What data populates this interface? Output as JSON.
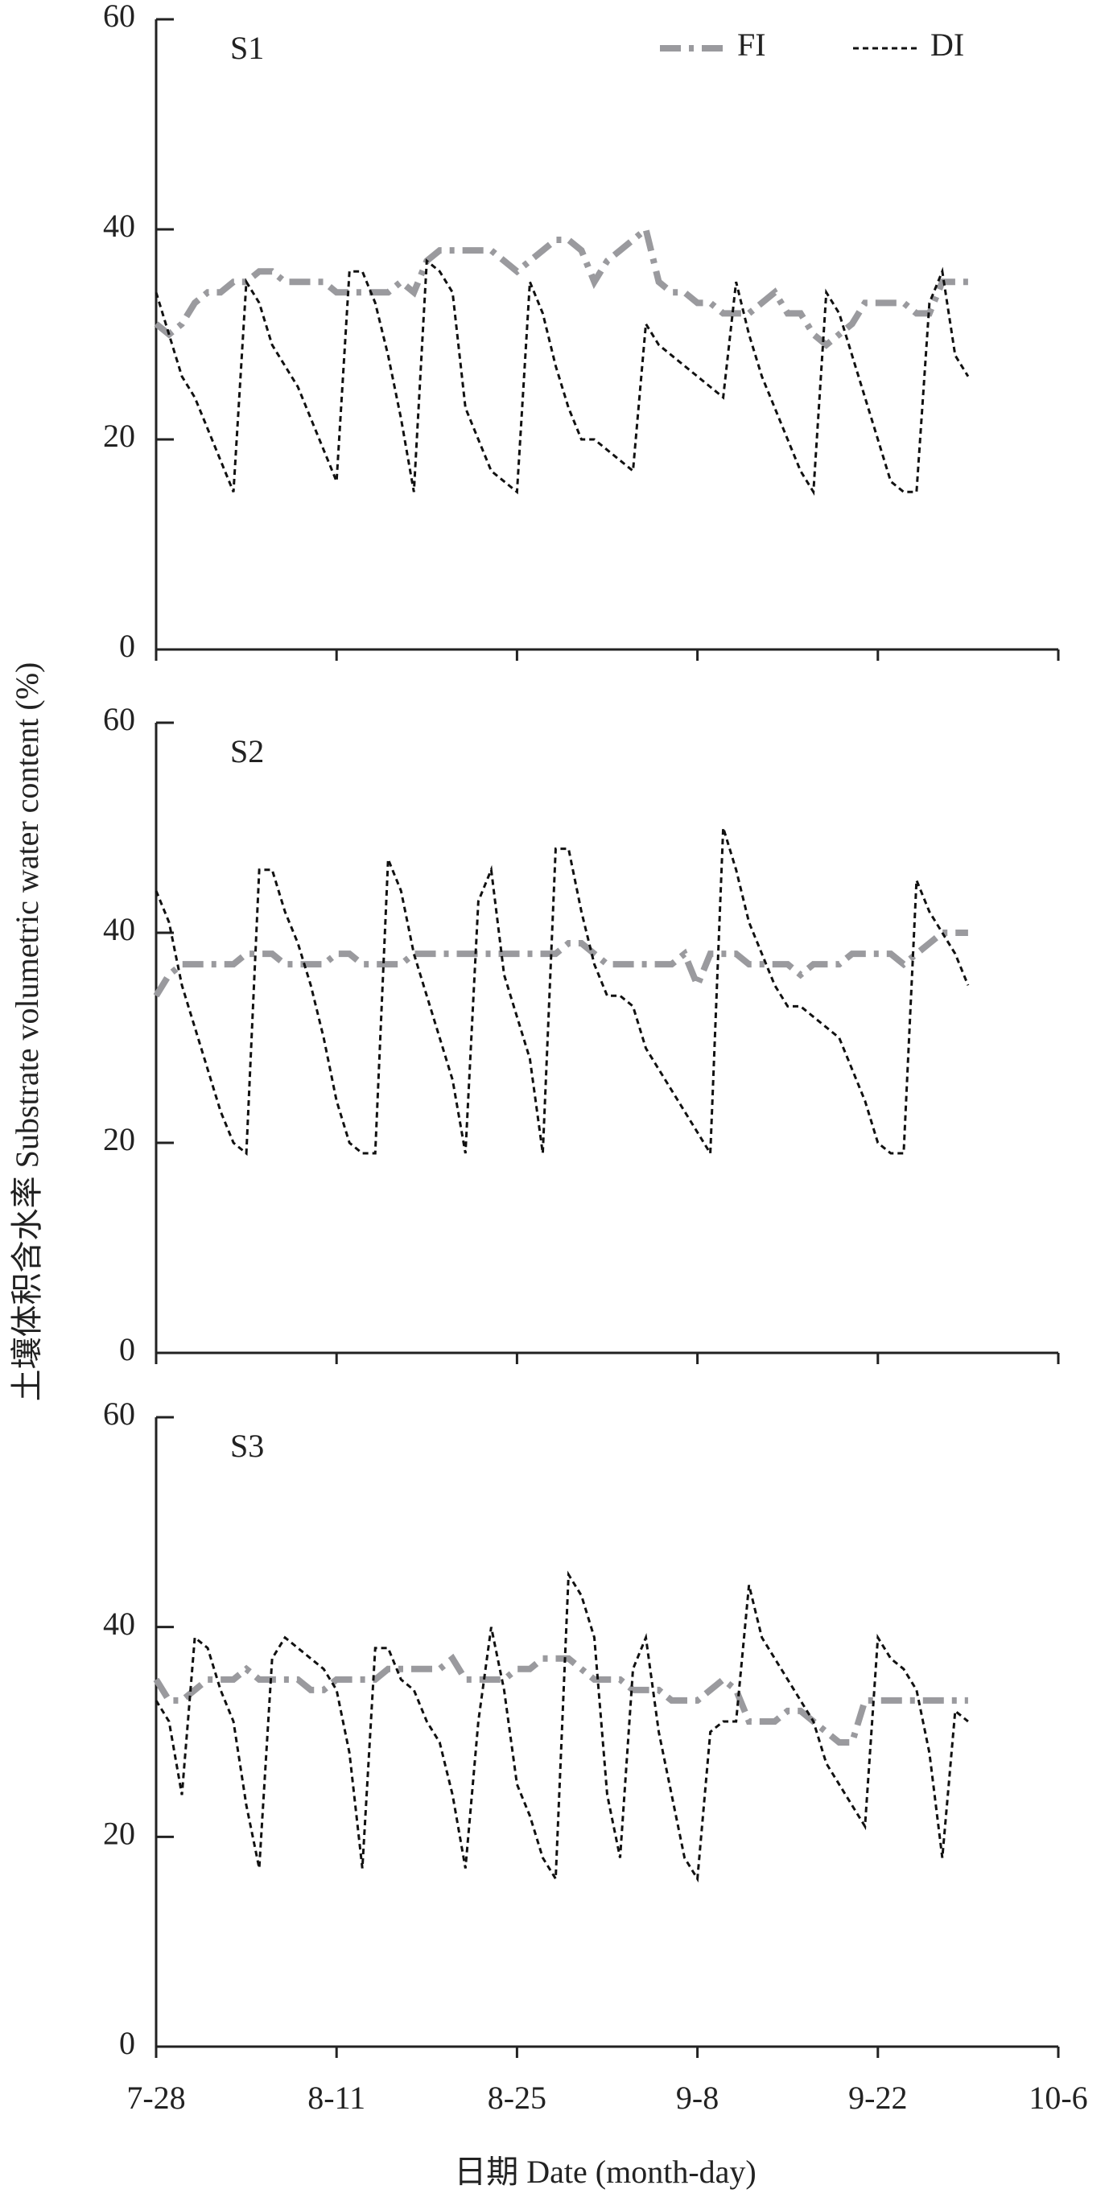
{
  "chart_data": [
    {
      "type": "line",
      "title": "S1",
      "legend": "upper right",
      "show_xtick_labels": false,
      "x": [
        "7-28",
        "7-29",
        "7-30",
        "7-31",
        "8-1",
        "8-2",
        "8-3",
        "8-4",
        "8-5",
        "8-6",
        "8-7",
        "8-8",
        "8-9",
        "8-10",
        "8-11",
        "8-12",
        "8-13",
        "8-14",
        "8-15",
        "8-16",
        "8-17",
        "8-18",
        "8-19",
        "8-20",
        "8-21",
        "8-22",
        "8-23",
        "8-24",
        "8-25",
        "8-26",
        "8-27",
        "8-28",
        "8-29",
        "8-30",
        "8-31",
        "9-1",
        "9-2",
        "9-3",
        "9-4",
        "9-5",
        "9-6",
        "9-7",
        "9-8",
        "9-9",
        "9-10",
        "9-11",
        "9-12",
        "9-13",
        "9-14",
        "9-15",
        "9-16",
        "9-17",
        "9-18",
        "9-19",
        "9-20",
        "9-21",
        "9-22",
        "9-23",
        "9-24",
        "9-25",
        "9-26",
        "9-27",
        "9-28",
        "9-29"
      ],
      "series": [
        {
          "name": "FI",
          "color": "#9a9a9e",
          "style": "dashdot",
          "values": [
            31,
            30,
            31,
            33,
            34,
            34,
            35,
            35,
            36,
            36,
            35,
            35,
            35,
            35,
            34,
            34,
            34,
            34,
            34,
            35,
            34,
            37,
            38,
            38,
            38,
            38,
            38,
            37,
            36,
            37,
            38,
            39,
            39,
            38,
            35,
            37,
            38,
            39,
            40,
            35,
            34,
            34,
            33,
            33,
            32,
            32,
            32,
            33,
            34,
            32,
            32,
            30,
            29,
            30,
            31,
            33,
            33,
            33,
            33,
            32,
            32,
            35,
            35,
            35
          ]
        },
        {
          "name": "DI",
          "color": "#111111",
          "style": "dashed",
          "values": [
            34,
            30,
            26,
            24,
            21,
            18,
            15,
            35,
            33,
            29,
            27,
            25,
            22,
            19,
            16,
            36,
            36,
            33,
            28,
            22,
            15,
            37,
            36,
            34,
            23,
            20,
            17,
            16,
            15,
            35,
            32,
            27,
            23,
            20,
            20,
            19,
            18,
            17,
            31,
            29,
            28,
            27,
            26,
            25,
            24,
            35,
            30,
            26,
            23,
            20,
            17,
            15,
            34,
            32,
            28,
            24,
            20,
            16,
            15,
            15,
            33,
            36,
            28,
            26
          ]
        }
      ],
      "xlim": [
        "7-28",
        "10-6"
      ],
      "xticks": [
        "7-28",
        "8-11",
        "8-25",
        "9-8",
        "9-22",
        "10-6"
      ],
      "ylim": [
        0,
        60
      ],
      "yticks": [
        0,
        20,
        40,
        60
      ]
    },
    {
      "type": "line",
      "title": "S2",
      "show_xtick_labels": false,
      "ylabel": "土壤体积含水率 Substrate volumetric water content (%)",
      "x": [
        "7-28",
        "7-29",
        "7-30",
        "7-31",
        "8-1",
        "8-2",
        "8-3",
        "8-4",
        "8-5",
        "8-6",
        "8-7",
        "8-8",
        "8-9",
        "8-10",
        "8-11",
        "8-12",
        "8-13",
        "8-14",
        "8-15",
        "8-16",
        "8-17",
        "8-18",
        "8-19",
        "8-20",
        "8-21",
        "8-22",
        "8-23",
        "8-24",
        "8-25",
        "8-26",
        "8-27",
        "8-28",
        "8-29",
        "8-30",
        "8-31",
        "9-1",
        "9-2",
        "9-3",
        "9-4",
        "9-5",
        "9-6",
        "9-7",
        "9-8",
        "9-9",
        "9-10",
        "9-11",
        "9-12",
        "9-13",
        "9-14",
        "9-15",
        "9-16",
        "9-17",
        "9-18",
        "9-19",
        "9-20",
        "9-21",
        "9-22",
        "9-23",
        "9-24",
        "9-25",
        "9-26",
        "9-27",
        "9-28",
        "9-29"
      ],
      "series": [
        {
          "color": "#9a9a9e",
          "style": "dashdot",
          "values": [
            34,
            36,
            37,
            37,
            37,
            37,
            37,
            38,
            38,
            38,
            37,
            37,
            37,
            37,
            38,
            38,
            37,
            37,
            37,
            37,
            38,
            38,
            38,
            38,
            38,
            38,
            38,
            38,
            38,
            38,
            38,
            38,
            39,
            39,
            38,
            37,
            37,
            37,
            37,
            37,
            37,
            38,
            35,
            38,
            38,
            38,
            37,
            37,
            37,
            37,
            36,
            37,
            37,
            37,
            38,
            38,
            38,
            38,
            37,
            38,
            39,
            40,
            40,
            40
          ]
        },
        {
          "color": "#111111",
          "style": "dashed",
          "values": [
            44,
            41,
            35,
            31,
            27,
            23,
            20,
            19,
            46,
            46,
            42,
            39,
            35,
            30,
            24,
            20,
            19,
            19,
            47,
            44,
            38,
            34,
            30,
            26,
            19,
            43,
            46,
            36,
            32,
            28,
            19,
            48,
            48,
            42,
            37,
            34,
            34,
            33,
            29,
            27,
            25,
            23,
            21,
            19,
            50,
            46,
            41,
            38,
            35,
            33,
            33,
            32,
            31,
            30,
            27,
            24,
            20,
            19,
            19,
            45,
            42,
            40,
            38,
            35
          ]
        }
      ],
      "xlim": [
        "7-28",
        "10-6"
      ],
      "xticks": [
        "7-28",
        "8-11",
        "8-25",
        "9-8",
        "9-22",
        "10-6"
      ],
      "ylim": [
        0,
        60
      ],
      "yticks": [
        0,
        20,
        40,
        60
      ]
    },
    {
      "type": "line",
      "title": "S3",
      "show_xtick_labels": true,
      "xlabel": "日期 Date (month-day)",
      "x": [
        "7-28",
        "7-29",
        "7-30",
        "7-31",
        "8-1",
        "8-2",
        "8-3",
        "8-4",
        "8-5",
        "8-6",
        "8-7",
        "8-8",
        "8-9",
        "8-10",
        "8-11",
        "8-12",
        "8-13",
        "8-14",
        "8-15",
        "8-16",
        "8-17",
        "8-18",
        "8-19",
        "8-20",
        "8-21",
        "8-22",
        "8-23",
        "8-24",
        "8-25",
        "8-26",
        "8-27",
        "8-28",
        "8-29",
        "8-30",
        "8-31",
        "9-1",
        "9-2",
        "9-3",
        "9-4",
        "9-5",
        "9-6",
        "9-7",
        "9-8",
        "9-9",
        "9-10",
        "9-11",
        "9-12",
        "9-13",
        "9-14",
        "9-15",
        "9-16",
        "9-17",
        "9-18",
        "9-19",
        "9-20",
        "9-21",
        "9-22",
        "9-23",
        "9-24",
        "9-25",
        "9-26",
        "9-27",
        "9-28",
        "9-29"
      ],
      "series": [
        {
          "color": "#9a9a9e",
          "style": "dashdot",
          "values": [
            35,
            33,
            33,
            34,
            35,
            35,
            35,
            36,
            35,
            35,
            35,
            35,
            34,
            34,
            35,
            35,
            35,
            35,
            36,
            36,
            36,
            36,
            36,
            37,
            35,
            35,
            35,
            35,
            36,
            36,
            37,
            37,
            37,
            36,
            35,
            35,
            35,
            34,
            34,
            34,
            33,
            33,
            33,
            34,
            35,
            34,
            31,
            31,
            31,
            32,
            32,
            31,
            30,
            29,
            29,
            33,
            33,
            33,
            33,
            33,
            33,
            33,
            33,
            33
          ]
        },
        {
          "color": "#111111",
          "style": "dashed",
          "values": [
            33,
            31,
            24,
            39,
            38,
            34,
            31,
            23,
            17,
            37,
            39,
            38,
            37,
            36,
            34,
            28,
            17,
            38,
            38,
            35,
            34,
            31,
            29,
            24,
            17,
            31,
            40,
            34,
            25,
            22,
            18,
            16,
            45,
            43,
            39,
            24,
            18,
            36,
            39,
            30,
            24,
            18,
            16,
            30,
            31,
            31,
            44,
            39,
            37,
            35,
            33,
            31,
            27,
            25,
            23,
            21,
            39,
            37,
            36,
            34,
            28,
            18,
            32,
            31
          ]
        }
      ],
      "xlim": [
        "7-28",
        "10-6"
      ],
      "xticks": [
        "7-28",
        "8-11",
        "8-25",
        "9-8",
        "9-22",
        "10-6"
      ],
      "ylim": [
        0,
        60
      ],
      "yticks": [
        0,
        20,
        40,
        60
      ]
    }
  ]
}
